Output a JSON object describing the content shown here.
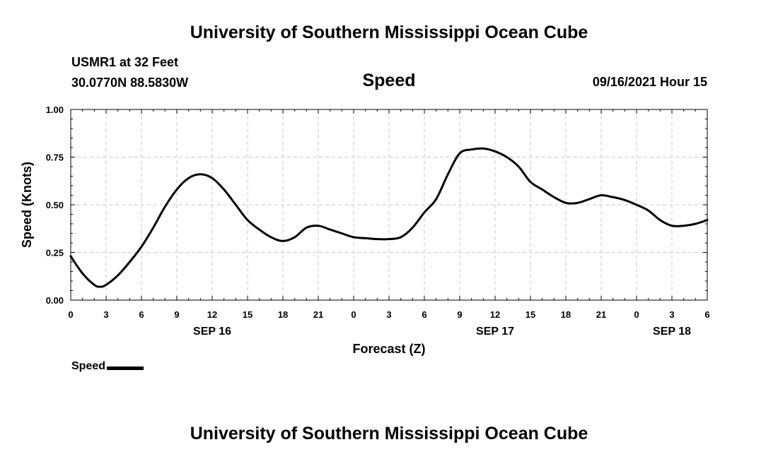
{
  "header": {
    "title": "University of Southern Mississippi Ocean Cube",
    "station": "USMR1 at 32 Feet",
    "coords": "30.0770N  88.5830W",
    "chart_title": "Speed",
    "datetime": "09/16/2021 Hour 15"
  },
  "footer": {
    "title": "University of Southern Mississippi Ocean Cube"
  },
  "legend": {
    "label": "Speed"
  },
  "colors": {
    "line": "#000000",
    "grid": "#c8c8c8"
  },
  "chart_data": {
    "type": "line",
    "title": "Speed",
    "xlabel": "Forecast (Z)",
    "ylabel": "Speed (Knots)",
    "xlim": [
      0,
      54
    ],
    "ylim": [
      0,
      1
    ],
    "grid": true,
    "x_ticks": [
      0,
      3,
      6,
      9,
      12,
      15,
      18,
      21,
      24,
      27,
      30,
      33,
      36,
      39,
      42,
      45,
      48,
      51,
      54
    ],
    "x_tick_labels": [
      "0",
      "3",
      "6",
      "9",
      "12",
      "15",
      "18",
      "21",
      "0",
      "3",
      "6",
      "9",
      "12",
      "15",
      "18",
      "21",
      "0",
      "3",
      "6"
    ],
    "y_ticks": [
      0,
      0.25,
      0.5,
      0.75,
      1
    ],
    "y_tick_labels": [
      "0.00",
      "0.25",
      "0.50",
      "0.75",
      "1.00"
    ],
    "date_labels": [
      {
        "x": 12,
        "label": "SEP 16"
      },
      {
        "x": 36,
        "label": "SEP 17"
      },
      {
        "x": 51,
        "label": "SEP 18"
      }
    ],
    "series": [
      {
        "name": "Speed",
        "x": [
          0,
          1,
          2,
          2.5,
          3,
          4,
          5,
          6,
          7,
          8,
          9,
          10,
          11,
          12,
          13,
          14,
          15,
          16,
          17,
          18,
          19,
          20,
          21,
          22,
          23,
          24,
          25,
          26,
          27,
          28,
          29,
          30,
          31,
          32,
          33,
          34,
          35,
          36,
          37,
          38,
          39,
          40,
          41,
          42,
          43,
          44,
          45,
          46,
          47,
          48,
          49,
          50,
          51,
          52,
          53,
          54
        ],
        "values": [
          0.23,
          0.14,
          0.08,
          0.07,
          0.08,
          0.13,
          0.2,
          0.28,
          0.38,
          0.49,
          0.58,
          0.64,
          0.66,
          0.64,
          0.58,
          0.5,
          0.42,
          0.37,
          0.33,
          0.31,
          0.33,
          0.38,
          0.39,
          0.37,
          0.35,
          0.33,
          0.325,
          0.32,
          0.32,
          0.33,
          0.38,
          0.46,
          0.53,
          0.66,
          0.77,
          0.79,
          0.795,
          0.78,
          0.75,
          0.7,
          0.62,
          0.58,
          0.54,
          0.51,
          0.51,
          0.53,
          0.55,
          0.54,
          0.525,
          0.5,
          0.47,
          0.42,
          0.39,
          0.39,
          0.4,
          0.42
        ]
      }
    ]
  }
}
